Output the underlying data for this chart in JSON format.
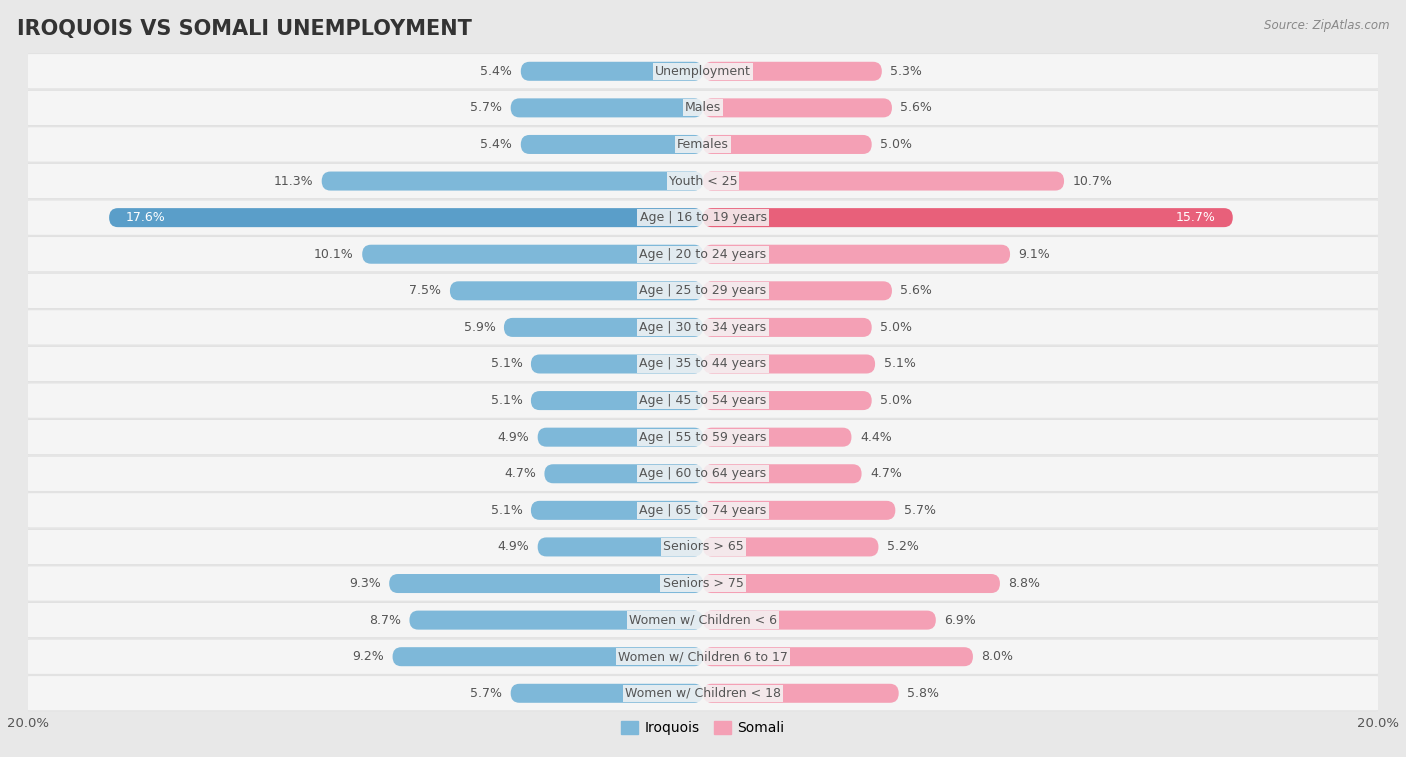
{
  "title": "IROQUOIS VS SOMALI UNEMPLOYMENT",
  "source": "Source: ZipAtlas.com",
  "categories": [
    "Unemployment",
    "Males",
    "Females",
    "Youth < 25",
    "Age | 16 to 19 years",
    "Age | 20 to 24 years",
    "Age | 25 to 29 years",
    "Age | 30 to 34 years",
    "Age | 35 to 44 years",
    "Age | 45 to 54 years",
    "Age | 55 to 59 years",
    "Age | 60 to 64 years",
    "Age | 65 to 74 years",
    "Seniors > 65",
    "Seniors > 75",
    "Women w/ Children < 6",
    "Women w/ Children 6 to 17",
    "Women w/ Children < 18"
  ],
  "iroquois": [
    5.4,
    5.7,
    5.4,
    11.3,
    17.6,
    10.1,
    7.5,
    5.9,
    5.1,
    5.1,
    4.9,
    4.7,
    5.1,
    4.9,
    9.3,
    8.7,
    9.2,
    5.7
  ],
  "somali": [
    5.3,
    5.6,
    5.0,
    10.7,
    15.7,
    9.1,
    5.6,
    5.0,
    5.1,
    5.0,
    4.4,
    4.7,
    5.7,
    5.2,
    8.8,
    6.9,
    8.0,
    5.8
  ],
  "iroquois_color": "#7eb8d9",
  "somali_color": "#f4a0b5",
  "iroquois_highlight": "#5a9ec9",
  "somali_highlight": "#e8607a",
  "axis_max": 20.0,
  "bar_height": 0.52,
  "bg_color": "#e8e8e8",
  "row_bg": "#f5f5f5",
  "row_sep": "#dddddd",
  "label_color": "#555555",
  "label_white": "#ffffff",
  "legend_iroquois": "Iroquois",
  "legend_somali": "Somali",
  "title_fontsize": 15,
  "label_fontsize": 9,
  "value_fontsize": 9
}
